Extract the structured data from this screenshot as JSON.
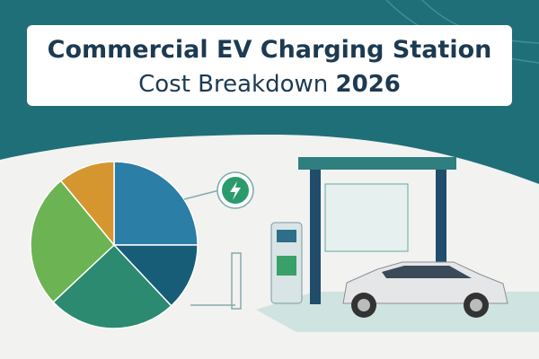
{
  "chart_data": {
    "type": "pie",
    "title": "Commercial EV Charging Station",
    "subtitle": "Cost Breakdown",
    "year": "2026",
    "values": [
      25,
      13,
      25,
      26,
      11
    ],
    "colors": [
      "#2b7ea6",
      "#175d78",
      "#2b8a70",
      "#6cb453",
      "#d6962f"
    ]
  }
}
